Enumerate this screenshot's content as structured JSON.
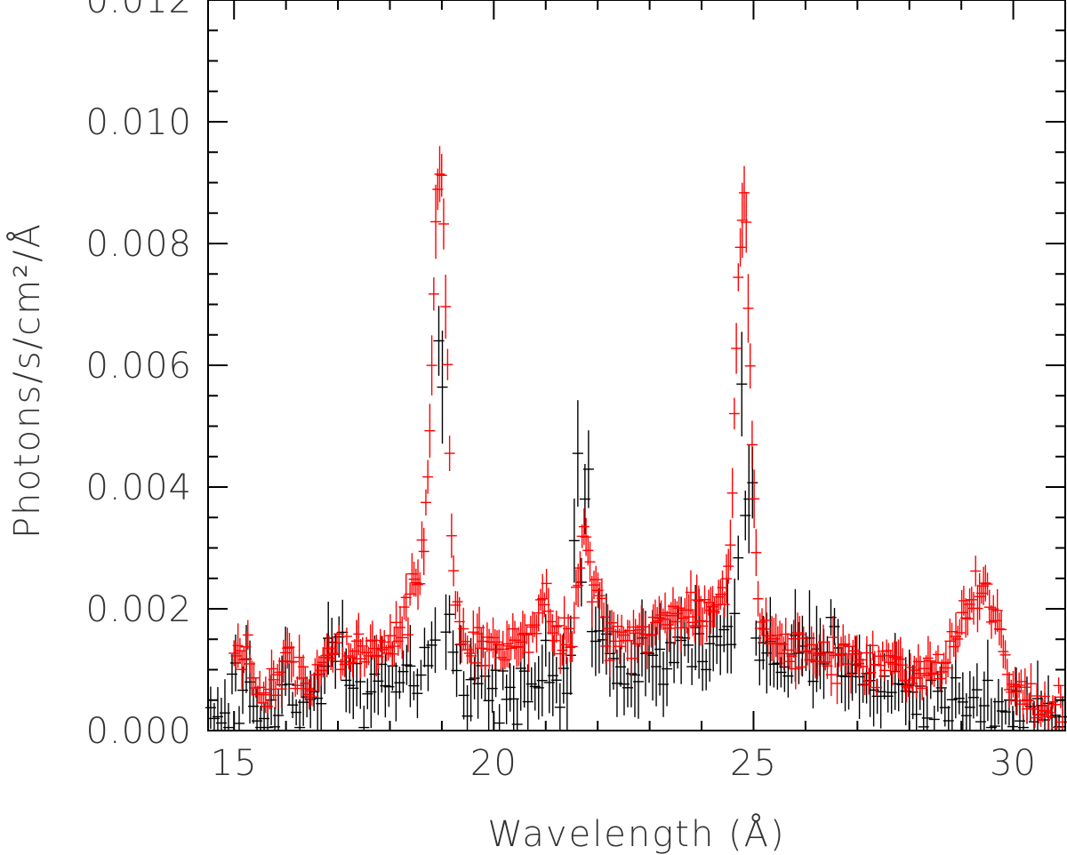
{
  "chart_data": {
    "type": "scatter",
    "title": "",
    "xlabel": "Wavelength (Å)",
    "ylabel": "Photons/s/cm²/Å",
    "xlim": [
      14.5,
      31.0
    ],
    "ylim": [
      0.0,
      0.012
    ],
    "grid": false,
    "legend": "none",
    "x_ticks": [
      15,
      20,
      25,
      30
    ],
    "x_tick_labels": [
      "15",
      "20",
      "25",
      "30"
    ],
    "y_ticks": [
      0.0,
      0.002,
      0.004,
      0.006,
      0.008,
      0.01,
      0.012
    ],
    "y_tick_labels": [
      "0.000",
      "0.002",
      "0.004",
      "0.006",
      "0.008",
      "0.010",
      "0.012"
    ],
    "series": [
      {
        "color": "#000000",
        "marker": "plus-with-errorbars",
        "x_start": 14.55,
        "x_end": 30.95,
        "count": 240,
        "continuum": [
          [
            14.5,
            0.0003
          ],
          [
            15.0,
            0.0002
          ],
          [
            15.5,
            0.0002
          ],
          [
            16.0,
            0.00035
          ],
          [
            16.5,
            0.0004
          ],
          [
            17.0,
            0.00045
          ],
          [
            17.5,
            0.0006
          ],
          [
            18.0,
            0.0007
          ],
          [
            18.5,
            0.001
          ],
          [
            19.0,
            0.001
          ],
          [
            19.5,
            0.0009
          ],
          [
            20.0,
            0.0008
          ],
          [
            20.5,
            0.0008
          ],
          [
            21.0,
            0.0008
          ],
          [
            21.5,
            0.0009
          ],
          [
            22.0,
            0.0011
          ],
          [
            22.5,
            0.0011
          ],
          [
            23.0,
            0.0012
          ],
          [
            23.5,
            0.0012
          ],
          [
            24.0,
            0.0013
          ],
          [
            24.5,
            0.0015
          ],
          [
            25.0,
            0.0013
          ],
          [
            25.5,
            0.0011
          ],
          [
            26.0,
            0.0011
          ],
          [
            26.5,
            0.001
          ],
          [
            27.0,
            0.0009
          ],
          [
            27.5,
            0.0008
          ],
          [
            28.0,
            0.0006
          ],
          [
            28.5,
            0.0005
          ],
          [
            29.0,
            0.0005
          ],
          [
            29.5,
            0.0005
          ],
          [
            30.0,
            0.0004
          ],
          [
            30.5,
            0.0003
          ],
          [
            31.0,
            0.0003
          ]
        ],
        "peaks": [
          {
            "x": 15.0,
            "amp": 0.0007,
            "w": 0.05
          },
          {
            "x": 15.25,
            "amp": 0.0012,
            "w": 0.05
          },
          {
            "x": 16.0,
            "amp": 0.0007,
            "w": 0.05
          },
          {
            "x": 16.8,
            "amp": 0.0013,
            "w": 0.06
          },
          {
            "x": 17.05,
            "amp": 0.0013,
            "w": 0.06
          },
          {
            "x": 18.97,
            "amp": 0.0067,
            "w": 0.04
          },
          {
            "x": 19.1,
            "amp": 0.0008,
            "w": 0.08
          },
          {
            "x": 21.6,
            "amp": 0.0035,
            "w": 0.05
          },
          {
            "x": 21.8,
            "amp": 0.0036,
            "w": 0.05
          },
          {
            "x": 22.1,
            "amp": 0.001,
            "w": 0.08
          },
          {
            "x": 24.78,
            "amp": 0.0045,
            "w": 0.05
          },
          {
            "x": 24.95,
            "amp": 0.0032,
            "w": 0.05
          },
          {
            "x": 26.5,
            "amp": 0.0008,
            "w": 0.1
          }
        ],
        "scatter": 0.00025,
        "error": 0.0007
      },
      {
        "color": "#ff0000",
        "marker": "plus-with-errorbars",
        "x_start": 15.0,
        "x_end": 30.95,
        "count": 420,
        "continuum": [
          [
            15.0,
            0.0012
          ],
          [
            15.3,
            0.0008
          ],
          [
            15.6,
            0.0006
          ],
          [
            15.9,
            0.0008
          ],
          [
            16.2,
            0.0009
          ],
          [
            16.5,
            0.0008
          ],
          [
            16.8,
            0.0013
          ],
          [
            17.2,
            0.0014
          ],
          [
            17.6,
            0.0013
          ],
          [
            18.0,
            0.0014
          ],
          [
            18.5,
            0.0015
          ],
          [
            19.0,
            0.0014
          ],
          [
            19.5,
            0.0014
          ],
          [
            20.0,
            0.0013
          ],
          [
            20.5,
            0.0015
          ],
          [
            21.0,
            0.0016
          ],
          [
            21.5,
            0.0015
          ],
          [
            22.0,
            0.0015
          ],
          [
            22.5,
            0.0014
          ],
          [
            23.0,
            0.0017
          ],
          [
            23.5,
            0.0019
          ],
          [
            24.0,
            0.002
          ],
          [
            24.5,
            0.002
          ],
          [
            25.0,
            0.0017
          ],
          [
            25.5,
            0.0014
          ],
          [
            26.0,
            0.0013
          ],
          [
            26.5,
            0.0012
          ],
          [
            27.0,
            0.0011
          ],
          [
            27.5,
            0.001
          ],
          [
            28.0,
            0.0009
          ],
          [
            28.5,
            0.0009
          ],
          [
            29.0,
            0.0009
          ],
          [
            29.5,
            0.0009
          ],
          [
            30.0,
            0.0006
          ],
          [
            30.5,
            0.0004
          ],
          [
            31.0,
            0.0004
          ]
        ],
        "peaks": [
          {
            "x": 15.25,
            "amp": 0.0006,
            "w": 0.06
          },
          {
            "x": 16.05,
            "amp": 0.0005,
            "w": 0.06
          },
          {
            "x": 18.97,
            "amp": 0.0072,
            "w": 0.13
          },
          {
            "x": 18.7,
            "amp": 0.0014,
            "w": 0.25
          },
          {
            "x": 21.0,
            "amp": 0.0005,
            "w": 0.1
          },
          {
            "x": 21.75,
            "amp": 0.0016,
            "w": 0.12
          },
          {
            "x": 22.05,
            "amp": 0.0006,
            "w": 0.1
          },
          {
            "x": 24.8,
            "amp": 0.0068,
            "w": 0.14
          },
          {
            "x": 27.6,
            "amp": 0.0002,
            "w": 0.1
          },
          {
            "x": 28.9,
            "amp": 0.0006,
            "w": 0.25
          },
          {
            "x": 29.35,
            "amp": 0.0012,
            "w": 0.22
          },
          {
            "x": 29.7,
            "amp": 0.0006,
            "w": 0.15
          }
        ],
        "scatter": 0.00018,
        "error": 0.00035
      }
    ]
  }
}
